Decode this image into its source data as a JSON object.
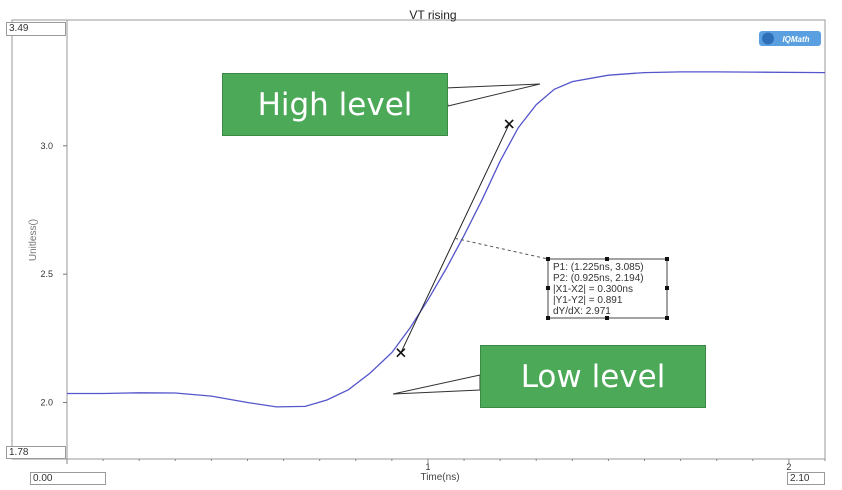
{
  "chart_data": {
    "type": "line",
    "title": "VT rising",
    "xlabel": "Time(ns)",
    "ylabel": "Unitless()",
    "xlim": [
      0.0,
      2.1
    ],
    "ylim": [
      1.78,
      3.49
    ],
    "x_range_labels": {
      "min": "0.00",
      "max": "2.10"
    },
    "y_range_labels": {
      "min": "1.78",
      "max": "3.49"
    },
    "x_ticks": [
      {
        "value": 1,
        "label": "1"
      },
      {
        "value": 2,
        "label": "2"
      }
    ],
    "y_ticks": [
      {
        "value": 2.0,
        "label": "2.0"
      },
      {
        "value": 2.5,
        "label": "2.5"
      },
      {
        "value": 3.0,
        "label": "3.0"
      }
    ],
    "series": [
      {
        "color": "#5555cc",
        "points": [
          [
            0.0,
            2.035
          ],
          [
            0.1,
            2.035
          ],
          [
            0.2,
            2.038
          ],
          [
            0.3,
            2.037
          ],
          [
            0.4,
            2.025
          ],
          [
            0.5,
            2.0
          ],
          [
            0.58,
            1.983
          ],
          [
            0.66,
            1.985
          ],
          [
            0.72,
            2.01
          ],
          [
            0.78,
            2.05
          ],
          [
            0.84,
            2.115
          ],
          [
            0.9,
            2.195
          ],
          [
            0.95,
            2.29
          ],
          [
            1.0,
            2.4
          ],
          [
            1.05,
            2.52
          ],
          [
            1.1,
            2.65
          ],
          [
            1.15,
            2.79
          ],
          [
            1.2,
            2.94
          ],
          [
            1.25,
            3.07
          ],
          [
            1.3,
            3.16
          ],
          [
            1.35,
            3.22
          ],
          [
            1.4,
            3.25
          ],
          [
            1.5,
            3.275
          ],
          [
            1.6,
            3.285
          ],
          [
            1.7,
            3.288
          ],
          [
            1.8,
            3.288
          ],
          [
            1.9,
            3.287
          ],
          [
            2.1,
            3.285
          ]
        ]
      }
    ],
    "measurement": {
      "p1": [
        1.225,
        3.085
      ],
      "p2": [
        0.925,
        2.194
      ],
      "lines": [
        "P1: (1.225ns, 3.085)",
        "P2: (0.925ns, 2.194)",
        "|X1-X2| = 0.300ns",
        "|Y1-Y2| = 0.891",
        "dY/dX: 2.971"
      ]
    },
    "logo_text": "IQMath",
    "grid": false,
    "legend": "none"
  },
  "annotations": {
    "high": "High level",
    "low": "Low level"
  },
  "colors": {
    "callout": "#4ca958",
    "curve": "#5555cc",
    "frame": "#9a9a9a"
  }
}
